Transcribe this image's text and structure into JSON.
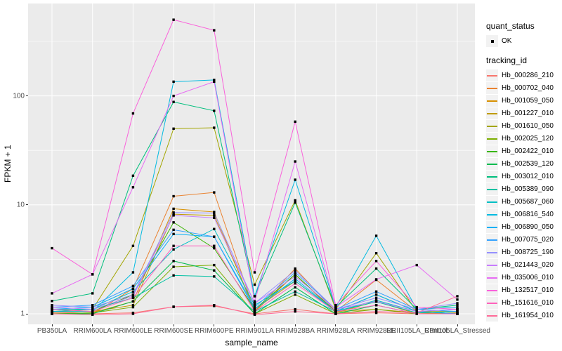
{
  "chart_data": {
    "type": "line",
    "xlabel": "sample_name",
    "ylabel": "FPKM + 1",
    "y_scale": "log10",
    "y_ticks": [
      1,
      10,
      100
    ],
    "y_minor": [
      3.162,
      31.62,
      316.2
    ],
    "ylim": [
      0.82,
      705
    ],
    "grid": "on",
    "legend_position": "right",
    "panel_bg": "#EBEBEB",
    "grid_color": "#FFFFFF",
    "point_color": "#000000",
    "key_bg": "#F2F2F2",
    "categories": [
      "PB350LA",
      "RRIM600LA",
      "RRIM600LE",
      "RRIM600SE",
      "RRIM600PE",
      "RRIM901LA",
      "RRIM928BA",
      "RRIM928LA",
      "RRIM928LE",
      "RRII105LA_Control",
      "RRII105LA_Stressed"
    ],
    "legend": {
      "quant_status_title": "quant_status",
      "quant_status_items": [
        {
          "label": "OK",
          "shape": "point",
          "color": "#000000"
        }
      ],
      "tracking_title": "tracking_id"
    },
    "series": [
      {
        "name": "Hb_000286_210",
        "color": "#F8766D",
        "values": [
          1.05,
          1.0,
          1.02,
          1.16,
          1.18,
          1.0,
          1.1,
          1.0,
          1.02,
          1.0,
          1.0
        ]
      },
      {
        "name": "Hb_000702_040",
        "color": "#EA8331",
        "values": [
          1.02,
          1.0,
          1.7,
          12.0,
          13.0,
          1.05,
          2.6,
          1.05,
          2.05,
          1.05,
          1.0
        ]
      },
      {
        "name": "Hb_001059_050",
        "color": "#D89000",
        "values": [
          1.0,
          1.02,
          1.3,
          9.2,
          8.6,
          1.05,
          2.3,
          1.02,
          1.3,
          1.0,
          1.02
        ]
      },
      {
        "name": "Hb_001227_010",
        "color": "#C09B00",
        "values": [
          1.1,
          1.05,
          1.2,
          8.2,
          8.0,
          1.1,
          2.0,
          1.05,
          1.1,
          1.02,
          1.0
        ]
      },
      {
        "name": "Hb_001610_050",
        "color": "#A3A500",
        "values": [
          1.05,
          1.1,
          4.2,
          50.0,
          51.0,
          1.85,
          11.0,
          1.1,
          3.6,
          1.05,
          1.05
        ]
      },
      {
        "name": "Hb_002025_120",
        "color": "#7CAE00",
        "values": [
          1.0,
          1.02,
          1.15,
          2.7,
          2.8,
          1.0,
          1.5,
          1.0,
          1.1,
          1.0,
          1.0
        ]
      },
      {
        "name": "Hb_002422_010",
        "color": "#39B600",
        "values": [
          1.05,
          1.05,
          1.5,
          6.9,
          4.0,
          1.1,
          2.3,
          1.05,
          1.5,
          1.05,
          1.0
        ]
      },
      {
        "name": "Hb_002539_120",
        "color": "#00BB4E",
        "values": [
          1.0,
          1.0,
          1.3,
          3.05,
          2.5,
          1.0,
          1.75,
          1.0,
          1.2,
          1.0,
          1.0
        ]
      },
      {
        "name": "Hb_003012_010",
        "color": "#00BF7D",
        "values": [
          1.31,
          1.54,
          18.5,
          88.0,
          73.0,
          1.45,
          10.5,
          1.15,
          2.6,
          1.1,
          1.2
        ]
      },
      {
        "name": "Hb_005389_090",
        "color": "#00C1A3",
        "values": [
          1.1,
          1.1,
          1.4,
          2.25,
          2.2,
          1.05,
          1.6,
          1.05,
          1.29,
          1.02,
          1.05
        ]
      },
      {
        "name": "Hb_005687_060",
        "color": "#00BFC4",
        "values": [
          1.05,
          1.1,
          1.6,
          3.9,
          6.0,
          1.2,
          2.0,
          1.05,
          1.33,
          1.05,
          1.1
        ]
      },
      {
        "name": "Hb_006816_540",
        "color": "#00BAE0",
        "values": [
          1.05,
          1.05,
          2.4,
          135,
          140,
          1.45,
          17.0,
          1.15,
          5.2,
          1.1,
          1.15
        ]
      },
      {
        "name": "Hb_006890_050",
        "color": "#00B0F6",
        "values": [
          1.1,
          1.15,
          1.7,
          5.4,
          5.1,
          1.1,
          2.1,
          1.05,
          1.5,
          1.05,
          1.0
        ]
      },
      {
        "name": "Hb_007075_020",
        "color": "#35A2FF",
        "values": [
          1.15,
          1.2,
          1.8,
          5.9,
          5.1,
          1.15,
          2.4,
          1.1,
          1.6,
          1.1,
          1.05
        ]
      },
      {
        "name": "Hb_008725_190",
        "color": "#9590FF",
        "values": [
          1.2,
          1.15,
          1.5,
          8.5,
          8.4,
          1.25,
          2.5,
          1.1,
          1.4,
          1.1,
          1.25
        ]
      },
      {
        "name": "Hb_021443_020",
        "color": "#C77CFF",
        "values": [
          1.15,
          1.1,
          1.45,
          8.0,
          7.6,
          1.25,
          2.2,
          1.1,
          1.3,
          1.05,
          1.1
        ]
      },
      {
        "name": "Hb_035006_010",
        "color": "#E76BF3",
        "values": [
          1.54,
          2.3,
          14.5,
          100,
          135,
          1.3,
          25.0,
          1.15,
          2.07,
          2.8,
          1.35
        ]
      },
      {
        "name": "Hb_132517_010",
        "color": "#FA62DB",
        "values": [
          4.0,
          2.3,
          69.0,
          500,
          400,
          2.4,
          58.0,
          1.2,
          3.05,
          1.15,
          1.1
        ]
      },
      {
        "name": "Hb_151616_010",
        "color": "#FF62BC",
        "values": [
          1.1,
          1.05,
          1.4,
          4.2,
          4.2,
          1.05,
          1.9,
          1.05,
          1.2,
          1.0,
          1.0
        ]
      },
      {
        "name": "Hb_161954_010",
        "color": "#FF6A98",
        "values": [
          1.0,
          0.98,
          1.0,
          1.16,
          1.2,
          0.98,
          1.05,
          1.0,
          1.05,
          1.02,
          1.45
        ]
      }
    ]
  }
}
